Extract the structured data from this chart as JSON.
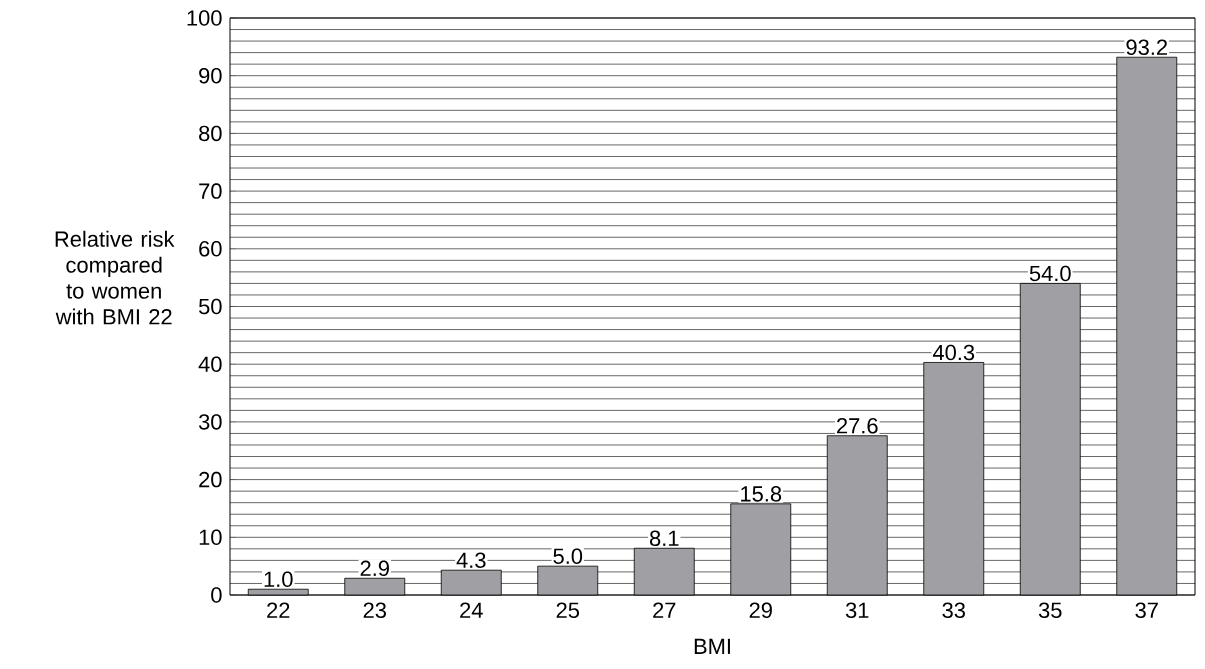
{
  "chart_data": {
    "type": "bar",
    "xlabel": "BMI",
    "ylabel": "Relative risk compared to women with BMI 22",
    "categories": [
      "22",
      "23",
      "24",
      "25",
      "27",
      "29",
      "31",
      "33",
      "35",
      "37"
    ],
    "values": [
      1.0,
      2.9,
      4.3,
      5.0,
      8.1,
      15.8,
      27.6,
      40.3,
      54.0,
      93.2
    ],
    "value_labels": [
      "1.0",
      "2.9",
      "4.3",
      "5.0",
      "8.1",
      "15.8",
      "27.6",
      "40.3",
      "54.0",
      "93.2"
    ],
    "color": "#a0a0a4",
    "ylim": [
      0,
      100
    ],
    "yticks": [
      0,
      10,
      20,
      30,
      40,
      50,
      60,
      70,
      80,
      90,
      100
    ],
    "grid": "y"
  }
}
